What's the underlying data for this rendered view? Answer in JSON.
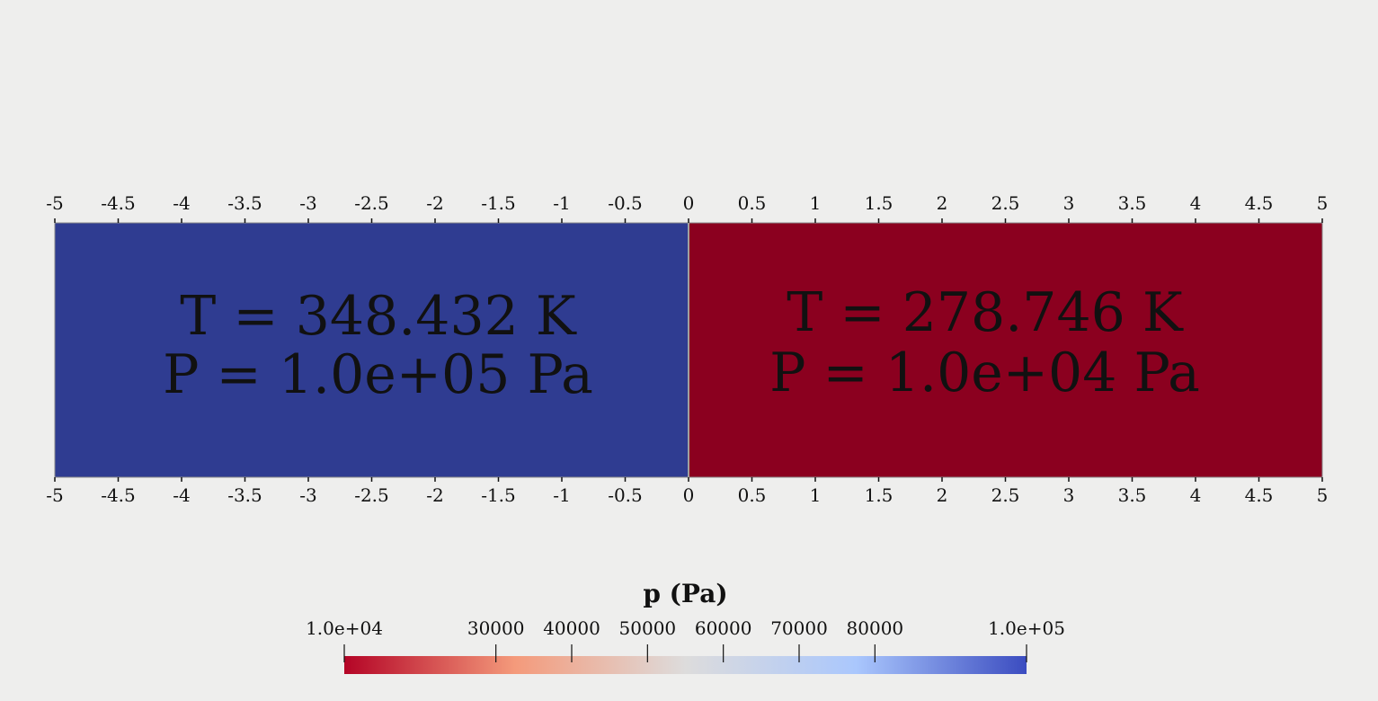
{
  "domain": {
    "x_range": [
      -5,
      5
    ],
    "tick_labels": [
      "-5",
      "-4.5",
      "-4",
      "-3.5",
      "-3",
      "-2.5",
      "-2",
      "-1.5",
      "-1",
      "-0.5",
      "0",
      "0.5",
      "1",
      "1.5",
      "2",
      "2.5",
      "3",
      "3.5",
      "4",
      "4.5",
      "5"
    ],
    "interface_x": 0
  },
  "regions": [
    {
      "x_from": -5,
      "x_to": 0,
      "color": "#2f3c91",
      "T_text": "T = 348.432 K",
      "P_text": "P = 1.0e+05 Pa"
    },
    {
      "x_from": 0,
      "x_to": 5,
      "color": "#8b001f",
      "T_text": "T = 278.746 K",
      "P_text": "P = 1.0e+04 Pa"
    }
  ],
  "colorbar": {
    "title": "p (Pa)",
    "range": [
      10000,
      100000
    ],
    "ticks": [
      {
        "value": 10000,
        "label": "1.0e+04"
      },
      {
        "value": 30000,
        "label": "30000"
      },
      {
        "value": 40000,
        "label": "40000"
      },
      {
        "value": 50000,
        "label": "50000"
      },
      {
        "value": 60000,
        "label": "60000"
      },
      {
        "value": 70000,
        "label": "70000"
      },
      {
        "value": 80000,
        "label": "80000"
      },
      {
        "value": 100000,
        "label": "1.0e+05"
      }
    ],
    "colors": [
      "#b40426",
      "#f49a7b",
      "#dddcdc",
      "#aac7fd",
      "#3b4cc0"
    ]
  }
}
